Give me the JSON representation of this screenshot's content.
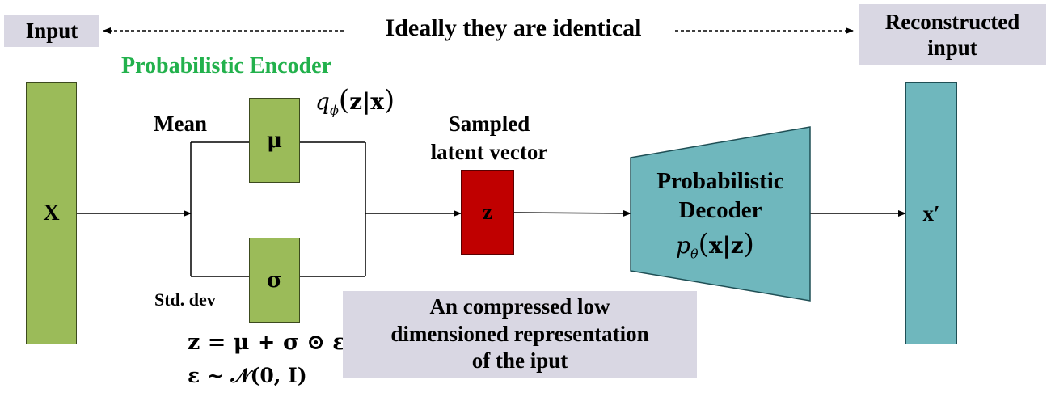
{
  "top": {
    "input_label": "Input",
    "identical_text": "Ideally they are identical",
    "reconstructed_line1": "Reconstructed",
    "reconstructed_line2": "input"
  },
  "encoder": {
    "title": "Probabilistic Encoder",
    "q_label": "q",
    "q_subscript": "ϕ",
    "q_args": "z|x",
    "mean_label": "Mean",
    "mu": "μ",
    "std_label": "Std. dev",
    "sigma": "σ"
  },
  "input_node": {
    "label": "X"
  },
  "latent": {
    "title_line1": "Sampled",
    "title_line2": "latent vector",
    "z": "z"
  },
  "decoder": {
    "line1": "Probabilistic",
    "line2": "Decoder",
    "p_label": "p",
    "p_subscript": "θ",
    "p_args": "x|z"
  },
  "output_node": {
    "label": "x′"
  },
  "equations": {
    "eq1": "z = μ + σ ⊙ ε",
    "eq2": "ε ~ 𝒩(0, I)"
  },
  "note": {
    "line1": "An compressed low",
    "line2": "dimensioned representation",
    "line3": "of the iput"
  },
  "colors": {
    "green_box": "#9bbb59",
    "teal_box": "#6fb7bd",
    "red_box": "#c00000",
    "label_bg": "#d9d7e3",
    "encoder_title": "#22b14c"
  }
}
